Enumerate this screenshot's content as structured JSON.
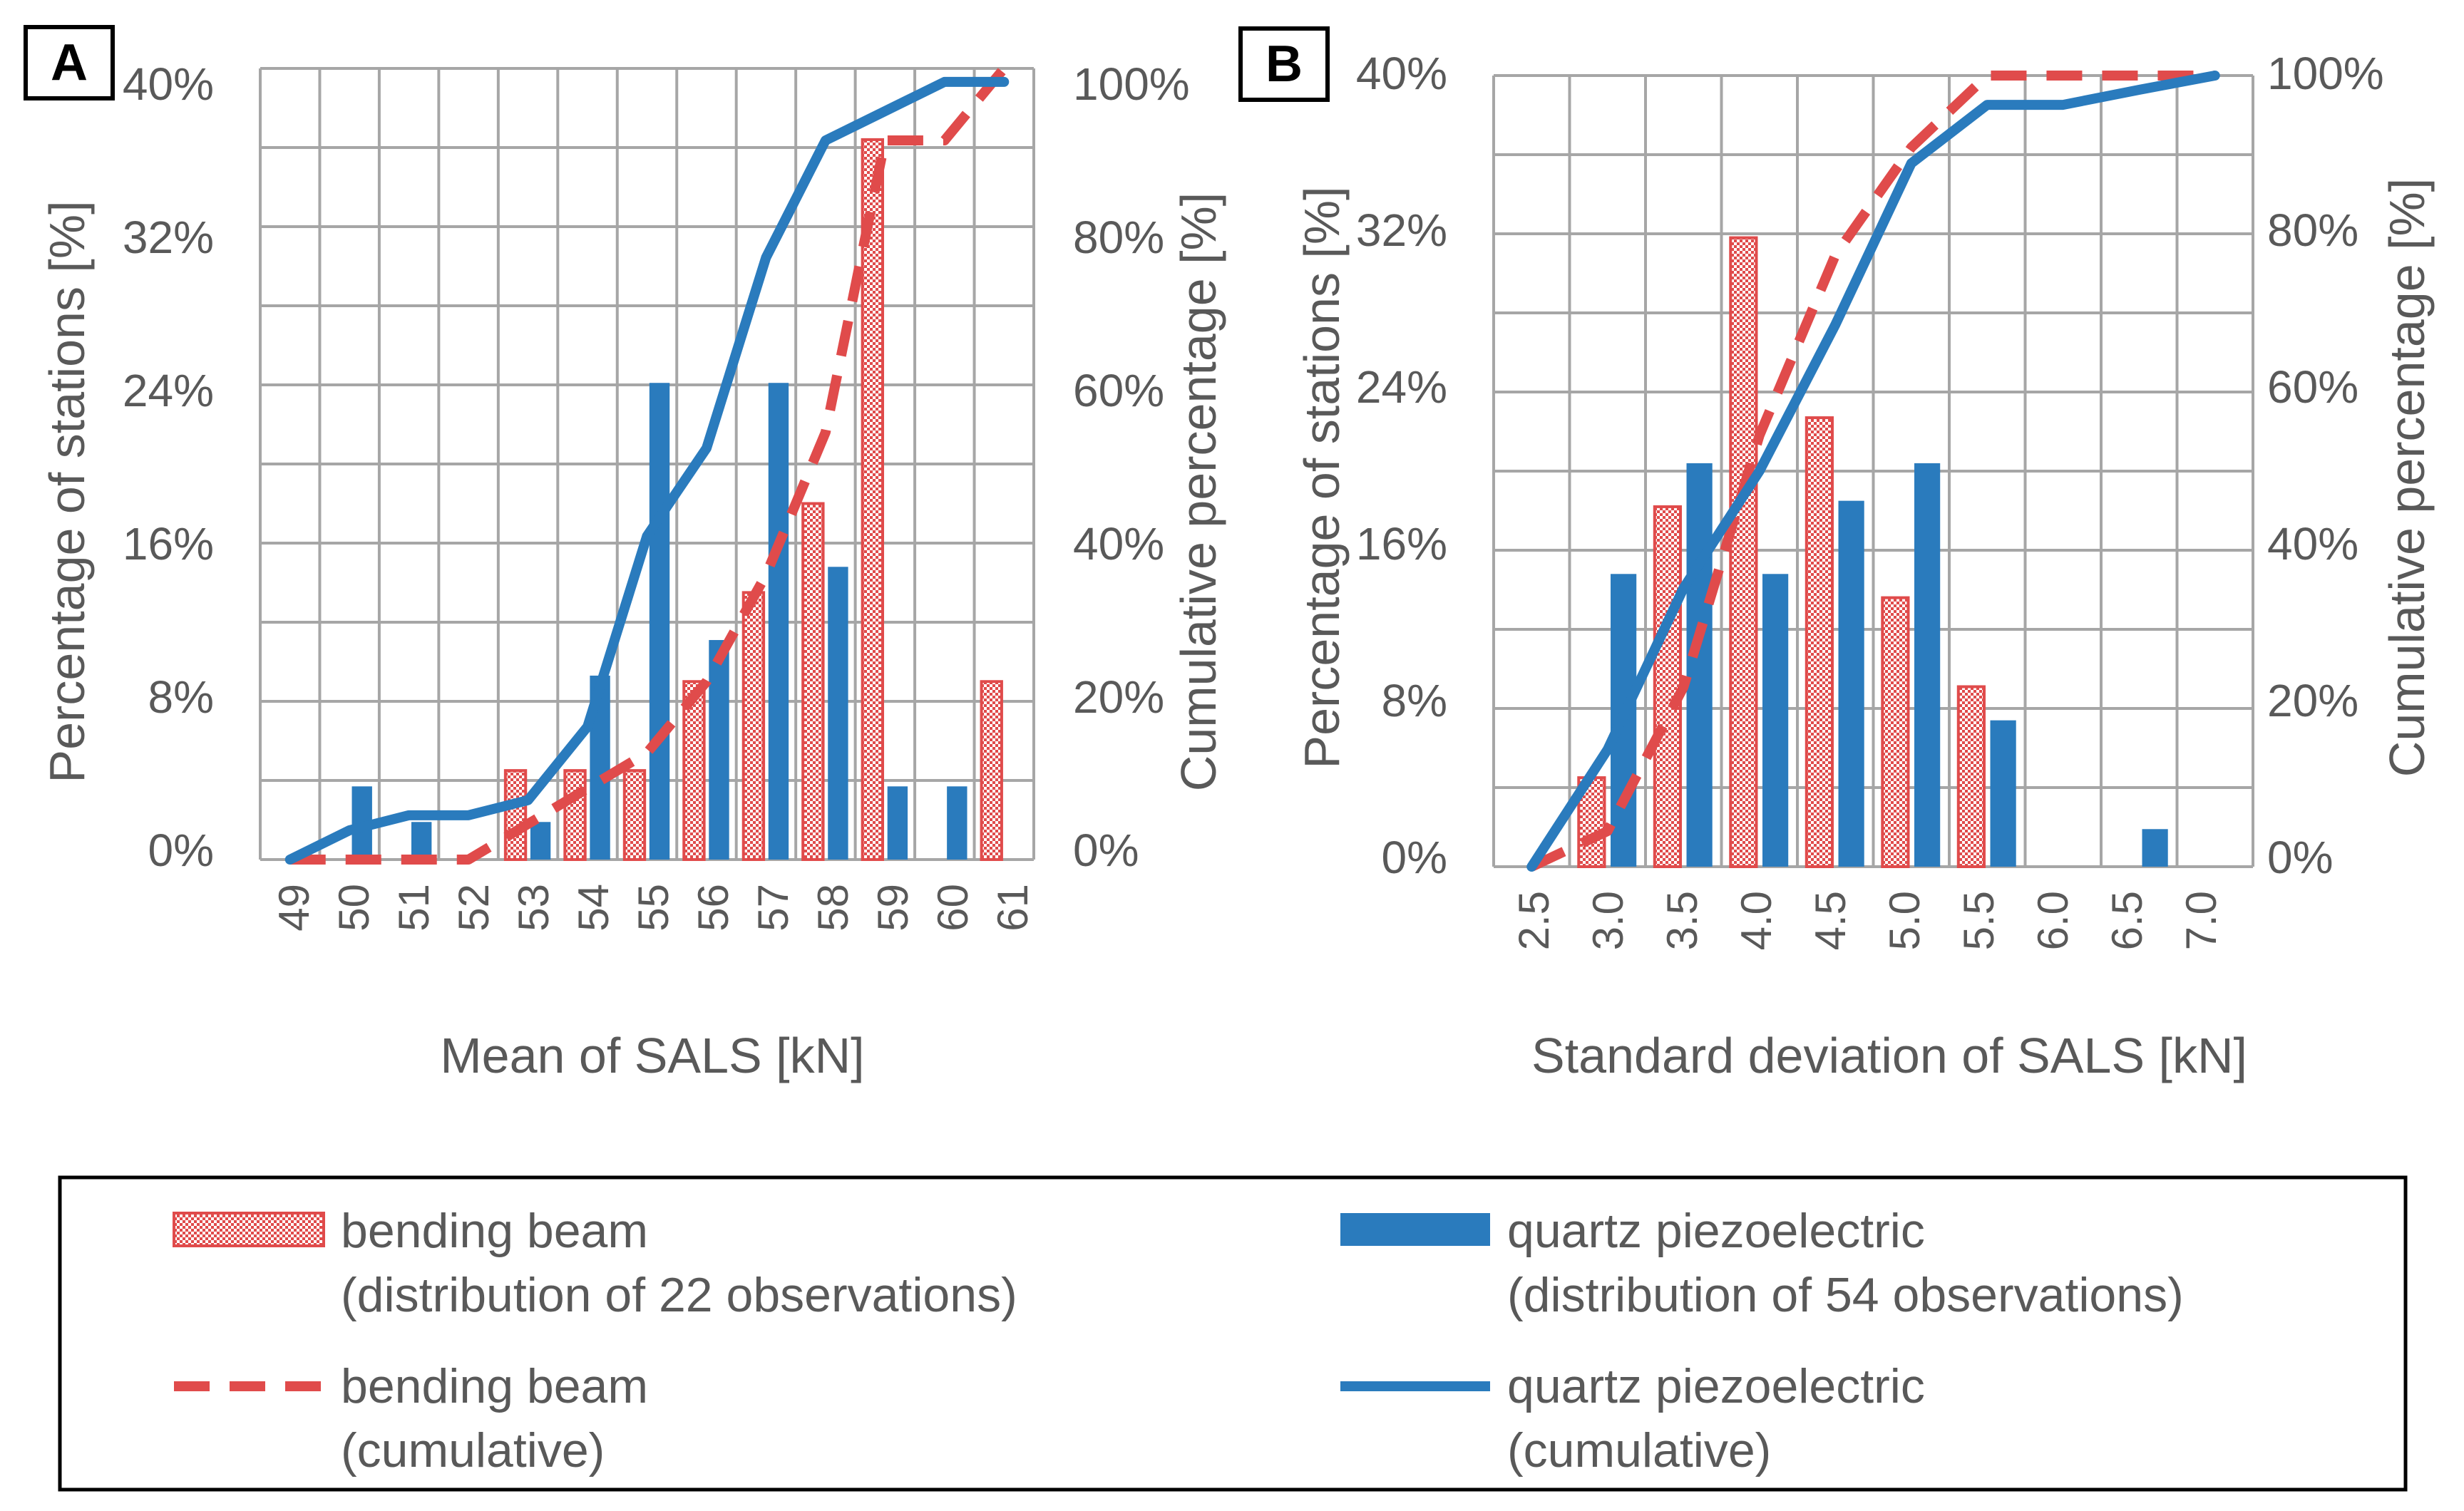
{
  "figure": {
    "panels": [
      {
        "letter": "A",
        "x_label": "Mean of  SALS [kN]",
        "y_left_label": "Percentage of stations [%]",
        "y_right_label": "Cumulative percentage [%]",
        "left_ticks": [
          "0%",
          "8%",
          "16%",
          "24%",
          "32%",
          "40%"
        ],
        "right_ticks": [
          "0%",
          "20%",
          "40%",
          "60%",
          "80%",
          "100%"
        ],
        "categories": [
          "49",
          "50",
          "51",
          "52",
          "53",
          "54",
          "55",
          "56",
          "57",
          "58",
          "59",
          "60",
          "61"
        ]
      },
      {
        "letter": "B",
        "x_label": "Standard deviation of SALS [kN]",
        "y_left_label": "Percentage of stations [%]",
        "y_right_label": "Cumulative percentage [%]",
        "left_ticks": [
          "0%",
          "8%",
          "16%",
          "24%",
          "32%",
          "40%"
        ],
        "right_ticks": [
          "0%",
          "20%",
          "40%",
          "60%",
          "80%",
          "100%"
        ],
        "categories": [
          "2.5",
          "3.0",
          "3.5",
          "4.0",
          "4.5",
          "5.0",
          "5.5",
          "6.0",
          "6.5",
          "7.0"
        ]
      }
    ]
  },
  "legend": {
    "bb_dist_line1": "bending beam",
    "bb_dist_line2": "(distribution of 22 observations)",
    "qp_dist_line1": "quartz piezoelectric",
    "qp_dist_line2": "(distribution of 54 observations)",
    "bb_cum_line1": "bending beam",
    "bb_cum_line2": "(cumulative)",
    "qp_cum_line1": "quartz piezoelectric",
    "qp_cum_line2": "(cumulative)"
  },
  "colors": {
    "bending_beam": "#e04b4b",
    "quartz_piezoelectric": "#2a7bbd",
    "grid": "#a6a6a6",
    "text": "#595959"
  },
  "chart_data": [
    {
      "type": "bar",
      "panel": "A",
      "title": "",
      "xlabel": "Mean of  SALS [kN]",
      "ylabel": "Percentage of stations [%]",
      "y2label": "Cumulative percentage [%]",
      "ylim": [
        0,
        40
      ],
      "y2lim": [
        0,
        100
      ],
      "categories": [
        "49",
        "50",
        "51",
        "52",
        "53",
        "54",
        "55",
        "56",
        "57",
        "58",
        "59",
        "60",
        "61"
      ],
      "series": [
        {
          "name": "bending beam (distribution of 22 observations)",
          "kind": "bar",
          "axis": "left",
          "values": [
            0,
            0,
            0,
            0,
            4.5,
            4.5,
            4.5,
            9,
            13.5,
            18,
            36.4,
            0,
            9
          ]
        },
        {
          "name": "quartz piezoelectric (distribution of 54 observations)",
          "kind": "bar",
          "axis": "left",
          "values": [
            0,
            3.7,
            1.9,
            0,
            1.9,
            9.3,
            24.1,
            11.1,
            24.1,
            14.8,
            3.7,
            3.7,
            0
          ]
        },
        {
          "name": "bending beam (cumulative)",
          "kind": "line",
          "axis": "right",
          "values": [
            0,
            0,
            0,
            0,
            4.5,
            9,
            13.5,
            22.5,
            36,
            54,
            90.9,
            90.9,
            100
          ]
        },
        {
          "name": "quartz piezoelectric (cumulative)",
          "kind": "line",
          "axis": "right",
          "values": [
            0,
            3.7,
            5.6,
            5.6,
            7.5,
            16.8,
            40.9,
            52,
            76.1,
            90.9,
            94.6,
            98.3,
            98.3
          ]
        }
      ]
    },
    {
      "type": "bar",
      "panel": "B",
      "title": "",
      "xlabel": "Standard deviation of SALS [kN]",
      "ylabel": "Percentage of stations [%]",
      "y2label": "Cumulative percentage [%]",
      "ylim": [
        0,
        40
      ],
      "y2lim": [
        0,
        100
      ],
      "categories": [
        "2.5",
        "3.0",
        "3.5",
        "4.0",
        "4.5",
        "5.0",
        "5.5",
        "6.0",
        "6.5",
        "7.0"
      ],
      "series": [
        {
          "name": "bending beam (distribution of 22 observations)",
          "kind": "bar",
          "axis": "left",
          "values": [
            0,
            4.5,
            18.2,
            31.8,
            22.7,
            13.6,
            9.1,
            0,
            0,
            0
          ]
        },
        {
          "name": "quartz piezoelectric (distribution of 54 observations)",
          "kind": "bar",
          "axis": "left",
          "values": [
            0,
            14.8,
            20.4,
            14.8,
            18.5,
            20.4,
            7.4,
            0,
            1.9,
            0
          ]
        },
        {
          "name": "bending beam (cumulative)",
          "kind": "line",
          "axis": "right",
          "values": [
            0,
            4.5,
            22.7,
            54.5,
            77.3,
            90.9,
            100,
            100,
            100,
            100
          ]
        },
        {
          "name": "quartz piezoelectric (cumulative)",
          "kind": "line",
          "axis": "right",
          "values": [
            0,
            14.8,
            35.2,
            50,
            68.5,
            88.9,
            96.3,
            96.3,
            98.2,
            100
          ]
        }
      ]
    }
  ]
}
